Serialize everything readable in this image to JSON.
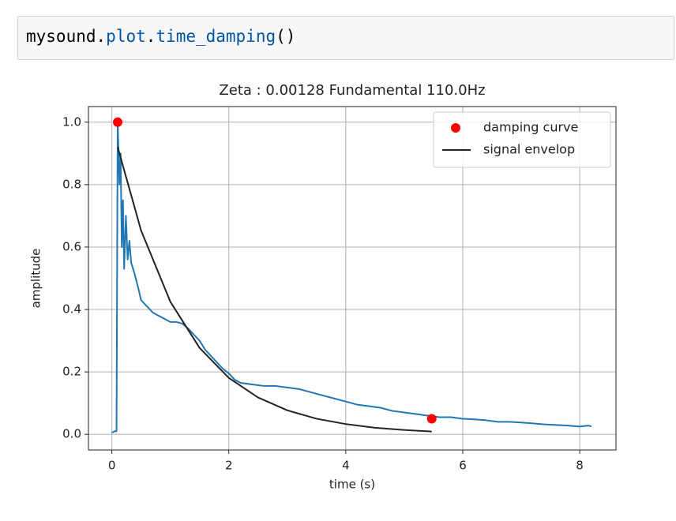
{
  "code_cell": {
    "tokens": [
      {
        "text": "mysound",
        "color": "#000000"
      },
      {
        "text": ".",
        "color": "#000000"
      },
      {
        "text": "plot",
        "color": "#0055aa"
      },
      {
        "text": ".",
        "color": "#000000"
      },
      {
        "text": "time_damping",
        "color": "#0055aa"
      },
      {
        "text": "()",
        "color": "#000000"
      }
    ]
  },
  "chart_data": {
    "type": "line",
    "title": "Zeta : 0.00128 Fundamental 110.0Hz",
    "x_label": "time (s)",
    "y_label": "amplitude",
    "xlim": [
      -0.4,
      8.62
    ],
    "ylim": [
      -0.05,
      1.05
    ],
    "xticks": [
      0,
      2,
      4,
      6,
      8
    ],
    "yticks": [
      {
        "value": 0,
        "label": "0.0"
      },
      0.2,
      0.4,
      0.6,
      0.8,
      {
        "value": 1,
        "label": "1.0"
      }
    ],
    "grid": true,
    "legend": "upper right",
    "series": [
      {
        "mark": "line",
        "color": "#1f77b4",
        "x": [
          0,
          0.05,
          0.08,
          0.1,
          0.13,
          0.15,
          0.17,
          0.19,
          0.21,
          0.24,
          0.27,
          0.3,
          0.33,
          0.38,
          0.45,
          0.5,
          0.6,
          0.7,
          0.8,
          0.9,
          1.0,
          1.1,
          1.2,
          1.3,
          1.4,
          1.5,
          1.6,
          1.7,
          1.8,
          1.9,
          2.0,
          2.1,
          2.2,
          2.4,
          2.6,
          2.8,
          3.0,
          3.2,
          3.4,
          3.6,
          3.8,
          4.0,
          4.2,
          4.4,
          4.6,
          4.8,
          5.0,
          5.2,
          5.4,
          5.6,
          5.8,
          6.0,
          6.2,
          6.4,
          6.6,
          6.8,
          7.0,
          7.2,
          7.4,
          7.6,
          7.8,
          8.0,
          8.15,
          8.2
        ],
        "values": [
          0.005,
          0.01,
          0.01,
          1.0,
          0.8,
          0.9,
          0.6,
          0.75,
          0.53,
          0.7,
          0.56,
          0.62,
          0.55,
          0.52,
          0.47,
          0.43,
          0.41,
          0.39,
          0.38,
          0.37,
          0.36,
          0.36,
          0.355,
          0.34,
          0.32,
          0.3,
          0.27,
          0.25,
          0.23,
          0.21,
          0.195,
          0.175,
          0.165,
          0.16,
          0.155,
          0.155,
          0.15,
          0.145,
          0.135,
          0.125,
          0.115,
          0.105,
          0.095,
          0.09,
          0.085,
          0.075,
          0.07,
          0.065,
          0.06,
          0.055,
          0.055,
          0.05,
          0.048,
          0.045,
          0.04,
          0.04,
          0.038,
          0.035,
          0.032,
          0.03,
          0.028,
          0.025,
          0.028,
          0.025
        ]
      },
      {
        "name": "damping curve",
        "mark": "scatter",
        "color": "#ff0000",
        "x": [
          0.1,
          5.47
        ],
        "values": [
          1.0,
          0.05
        ]
      },
      {
        "name": "signal envelop",
        "mark": "line",
        "color": "#222222",
        "x": [
          0.1,
          0.5,
          1.0,
          1.5,
          2.0,
          2.5,
          3.0,
          3.5,
          4.0,
          4.5,
          5.0,
          5.47
        ],
        "values": [
          0.92,
          0.653,
          0.425,
          0.277,
          0.181,
          0.118,
          0.077,
          0.05,
          0.033,
          0.021,
          0.014,
          0.009
        ]
      }
    ]
  }
}
